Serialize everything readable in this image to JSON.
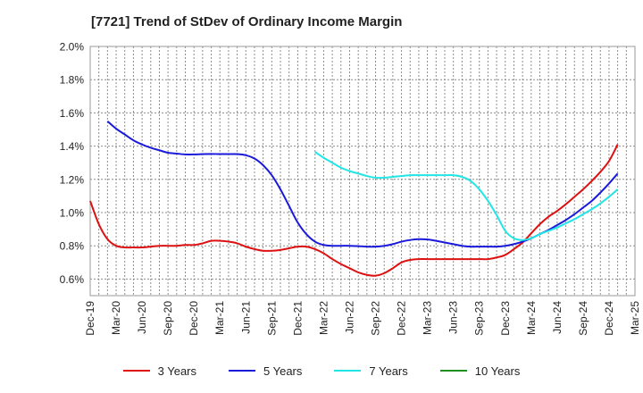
{
  "chart_data": {
    "type": "line",
    "title": "[7721]  Trend of StDev of Ordinary Income Margin",
    "xlabel": "",
    "ylabel": "",
    "ylim": [
      0.5,
      2.0
    ],
    "yticks": [
      0.6,
      0.8,
      1.0,
      1.2,
      1.4,
      1.6,
      1.8,
      2.0
    ],
    "ytick_labels": [
      "0.6%",
      "0.8%",
      "1.0%",
      "1.2%",
      "1.4%",
      "1.6%",
      "1.8%",
      "2.0%"
    ],
    "x_start": "Dec-19",
    "x_end": "Mar-25",
    "x_ticks": [
      "Dec-19",
      "Mar-20",
      "Jun-20",
      "Sep-20",
      "Dec-20",
      "Mar-21",
      "Jun-21",
      "Sep-21",
      "Dec-21",
      "Mar-22",
      "Jun-22",
      "Sep-22",
      "Dec-22",
      "Mar-23",
      "Jun-23",
      "Sep-23",
      "Dec-23",
      "Mar-24",
      "Jun-24",
      "Sep-24",
      "Dec-24",
      "Mar-25"
    ],
    "grid": true,
    "legend_position": "bottom",
    "series": [
      {
        "name": "3 Years",
        "color": "#dd1111",
        "points": [
          [
            "Dec-19",
            1.07
          ],
          [
            "Jan-20",
            0.93
          ],
          [
            "Feb-20",
            0.84
          ],
          [
            "Mar-20",
            0.8
          ],
          [
            "Apr-20",
            0.79
          ],
          [
            "May-20",
            0.79
          ],
          [
            "Jun-20",
            0.79
          ],
          [
            "Jul-20",
            0.795
          ],
          [
            "Aug-20",
            0.8
          ],
          [
            "Sep-20",
            0.8
          ],
          [
            "Oct-20",
            0.8
          ],
          [
            "Nov-20",
            0.805
          ],
          [
            "Dec-20",
            0.805
          ],
          [
            "Jan-21",
            0.815
          ],
          [
            "Feb-21",
            0.83
          ],
          [
            "Mar-21",
            0.83
          ],
          [
            "Apr-21",
            0.825
          ],
          [
            "May-21",
            0.815
          ],
          [
            "Jun-21",
            0.795
          ],
          [
            "Jul-21",
            0.78
          ],
          [
            "Aug-21",
            0.77
          ],
          [
            "Sep-21",
            0.77
          ],
          [
            "Oct-21",
            0.775
          ],
          [
            "Nov-21",
            0.785
          ],
          [
            "Dec-21",
            0.795
          ],
          [
            "Jan-22",
            0.795
          ],
          [
            "Feb-22",
            0.78
          ],
          [
            "Mar-22",
            0.755
          ],
          [
            "Apr-22",
            0.72
          ],
          [
            "May-22",
            0.69
          ],
          [
            "Jun-22",
            0.665
          ],
          [
            "Jul-22",
            0.64
          ],
          [
            "Aug-22",
            0.625
          ],
          [
            "Sep-22",
            0.62
          ],
          [
            "Oct-22",
            0.635
          ],
          [
            "Nov-22",
            0.665
          ],
          [
            "Dec-22",
            0.7
          ],
          [
            "Jan-23",
            0.715
          ],
          [
            "Feb-23",
            0.72
          ],
          [
            "Mar-23",
            0.72
          ],
          [
            "Apr-23",
            0.72
          ],
          [
            "May-23",
            0.72
          ],
          [
            "Jun-23",
            0.72
          ],
          [
            "Jul-23",
            0.72
          ],
          [
            "Aug-23",
            0.72
          ],
          [
            "Sep-23",
            0.72
          ],
          [
            "Oct-23",
            0.72
          ],
          [
            "Nov-23",
            0.73
          ],
          [
            "Dec-23",
            0.745
          ],
          [
            "Jan-24",
            0.78
          ],
          [
            "Feb-24",
            0.82
          ],
          [
            "Mar-24",
            0.875
          ],
          [
            "Apr-24",
            0.93
          ],
          [
            "May-24",
            0.975
          ],
          [
            "Jun-24",
            1.01
          ],
          [
            "Jul-24",
            1.05
          ],
          [
            "Aug-24",
            1.095
          ],
          [
            "Sep-24",
            1.14
          ],
          [
            "Oct-24",
            1.19
          ],
          [
            "Nov-24",
            1.245
          ],
          [
            "Dec-24",
            1.31
          ],
          [
            "Jan-25",
            1.41
          ]
        ]
      },
      {
        "name": "5 Years",
        "color": "#1a1adb",
        "points": [
          [
            "Feb-20",
            1.55
          ],
          [
            "Mar-20",
            1.505
          ],
          [
            "Apr-20",
            1.47
          ],
          [
            "May-20",
            1.435
          ],
          [
            "Jun-20",
            1.41
          ],
          [
            "Jul-20",
            1.39
          ],
          [
            "Aug-20",
            1.375
          ],
          [
            "Sep-20",
            1.36
          ],
          [
            "Oct-20",
            1.355
          ],
          [
            "Nov-20",
            1.35
          ],
          [
            "Dec-20",
            1.35
          ],
          [
            "Jan-21",
            1.352
          ],
          [
            "Feb-21",
            1.353
          ],
          [
            "Mar-21",
            1.352
          ],
          [
            "Apr-21",
            1.352
          ],
          [
            "May-21",
            1.352
          ],
          [
            "Jun-21",
            1.345
          ],
          [
            "Jul-21",
            1.325
          ],
          [
            "Aug-21",
            1.285
          ],
          [
            "Sep-21",
            1.225
          ],
          [
            "Oct-21",
            1.14
          ],
          [
            "Nov-21",
            1.04
          ],
          [
            "Dec-21",
            0.94
          ],
          [
            "Jan-22",
            0.87
          ],
          [
            "Feb-22",
            0.825
          ],
          [
            "Mar-22",
            0.805
          ],
          [
            "Apr-22",
            0.8
          ],
          [
            "May-22",
            0.8
          ],
          [
            "Jun-22",
            0.8
          ],
          [
            "Jul-22",
            0.798
          ],
          [
            "Aug-22",
            0.795
          ],
          [
            "Sep-22",
            0.795
          ],
          [
            "Oct-22",
            0.8
          ],
          [
            "Nov-22",
            0.81
          ],
          [
            "Dec-22",
            0.825
          ],
          [
            "Jan-23",
            0.835
          ],
          [
            "Feb-23",
            0.84
          ],
          [
            "Mar-23",
            0.838
          ],
          [
            "Apr-23",
            0.83
          ],
          [
            "May-23",
            0.82
          ],
          [
            "Jun-23",
            0.81
          ],
          [
            "Jul-23",
            0.8
          ],
          [
            "Aug-23",
            0.795
          ],
          [
            "Sep-23",
            0.795
          ],
          [
            "Oct-23",
            0.795
          ],
          [
            "Nov-23",
            0.795
          ],
          [
            "Dec-23",
            0.8
          ],
          [
            "Jan-24",
            0.81
          ],
          [
            "Feb-24",
            0.825
          ],
          [
            "Mar-24",
            0.845
          ],
          [
            "Apr-24",
            0.87
          ],
          [
            "May-24",
            0.895
          ],
          [
            "Jun-24",
            0.925
          ],
          [
            "Jul-24",
            0.955
          ],
          [
            "Aug-24",
            0.99
          ],
          [
            "Sep-24",
            1.03
          ],
          [
            "Oct-24",
            1.07
          ],
          [
            "Nov-24",
            1.12
          ],
          [
            "Dec-24",
            1.175
          ],
          [
            "Jan-25",
            1.235
          ]
        ]
      },
      {
        "name": "7 Years",
        "color": "#22e5e5",
        "points": [
          [
            "Feb-22",
            1.365
          ],
          [
            "Mar-22",
            1.33
          ],
          [
            "Apr-22",
            1.3
          ],
          [
            "May-22",
            1.27
          ],
          [
            "Jun-22",
            1.25
          ],
          [
            "Jul-22",
            1.235
          ],
          [
            "Aug-22",
            1.22
          ],
          [
            "Sep-22",
            1.21
          ],
          [
            "Oct-22",
            1.21
          ],
          [
            "Nov-22",
            1.215
          ],
          [
            "Dec-22",
            1.22
          ],
          [
            "Jan-23",
            1.225
          ],
          [
            "Feb-23",
            1.225
          ],
          [
            "Mar-23",
            1.225
          ],
          [
            "Apr-23",
            1.225
          ],
          [
            "May-23",
            1.225
          ],
          [
            "Jun-23",
            1.225
          ],
          [
            "Jul-23",
            1.215
          ],
          [
            "Aug-23",
            1.19
          ],
          [
            "Sep-23",
            1.14
          ],
          [
            "Oct-23",
            1.07
          ],
          [
            "Nov-23",
            0.985
          ],
          [
            "Dec-23",
            0.89
          ],
          [
            "Jan-24",
            0.845
          ],
          [
            "Feb-24",
            0.835
          ],
          [
            "Mar-24",
            0.845
          ],
          [
            "Apr-24",
            0.87
          ],
          [
            "May-24",
            0.89
          ],
          [
            "Jun-24",
            0.91
          ],
          [
            "Jul-24",
            0.935
          ],
          [
            "Aug-24",
            0.96
          ],
          [
            "Sep-24",
            0.99
          ],
          [
            "Oct-24",
            1.02
          ],
          [
            "Nov-24",
            1.055
          ],
          [
            "Dec-24",
            1.095
          ],
          [
            "Jan-25",
            1.14
          ]
        ]
      },
      {
        "name": "10 Years",
        "color": "#1f8f1f",
        "points": []
      }
    ]
  }
}
